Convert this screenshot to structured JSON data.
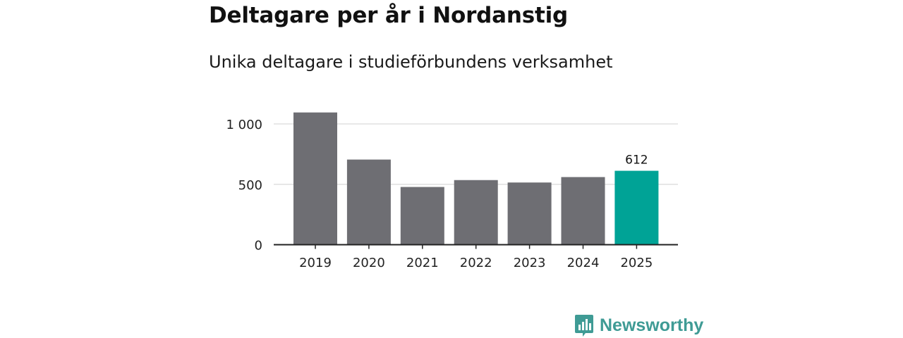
{
  "chart_data": {
    "type": "bar",
    "title": "Deltagare per år i Nordanstig",
    "subtitle": "Unika deltagare i studieförbundens verksamhet",
    "categories": [
      "2019",
      "2020",
      "2021",
      "2022",
      "2023",
      "2024",
      "2025"
    ],
    "values": [
      1095,
      705,
      478,
      535,
      515,
      560,
      612
    ],
    "highlight_index": 6,
    "data_labels": [
      {
        "index": 6,
        "text": "612"
      }
    ],
    "yticks": [
      {
        "value": 0,
        "label": "0"
      },
      {
        "value": 500,
        "label": "500"
      },
      {
        "value": 1000,
        "label": "1 000"
      }
    ],
    "ylim": [
      0,
      1100
    ],
    "xlabel": "",
    "ylabel": "",
    "grid": true,
    "colors": {
      "bar": "#6e6e73",
      "highlight": "#00a396",
      "grid": "#d9d9d9",
      "axis": "#222222"
    }
  },
  "brand": {
    "name": "Newsworthy",
    "icon": "newsworthy-logo-icon",
    "color": "#3f9b95"
  }
}
